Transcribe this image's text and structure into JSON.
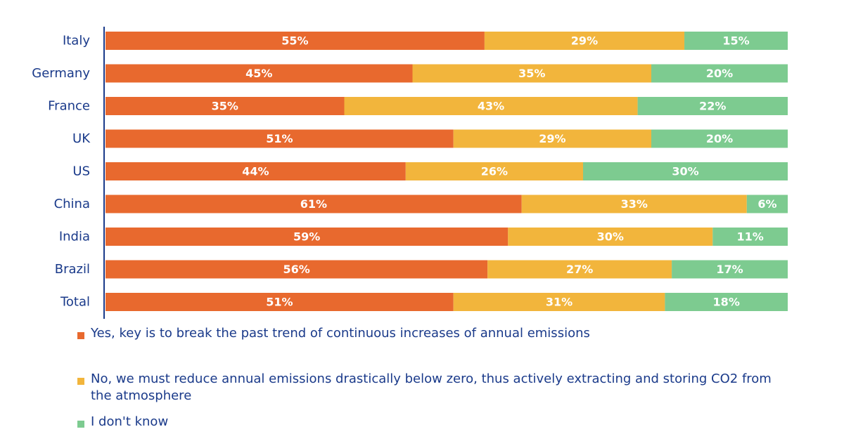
{
  "chart_data": {
    "type": "bar",
    "orientation": "horizontal",
    "stacked": true,
    "categories": [
      "Italy",
      "Germany",
      "France",
      "UK",
      "US",
      "China",
      "India",
      "Brazil",
      "Total"
    ],
    "series": [
      {
        "name": "Yes, key is to break the past trend of continuous increases of annual emissions",
        "color": "#e8692e",
        "values": [
          55,
          45,
          35,
          51,
          44,
          61,
          59,
          56,
          51
        ]
      },
      {
        "name": "No, we must reduce annual emissions drastically below zero, thus actively extracting and storing CO2 from the atmosphere",
        "color": "#f2b53c",
        "values": [
          29,
          35,
          43,
          29,
          26,
          33,
          30,
          27,
          31
        ]
      },
      {
        "name": "I don't know",
        "color": "#7dcb90",
        "values": [
          15,
          20,
          22,
          20,
          30,
          6,
          11,
          17,
          18
        ]
      }
    ],
    "value_suffix": "%",
    "axis_color": "#1a3a8a",
    "label_color": "#ffffff",
    "legend_position": "bottom-left",
    "grid": false
  }
}
